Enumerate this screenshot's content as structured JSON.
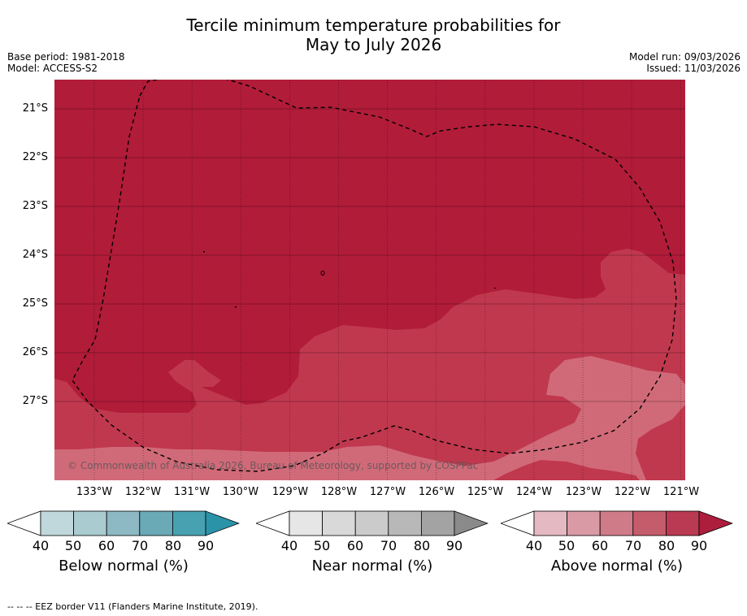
{
  "title": {
    "line1": "Tercile minimum temperature probabilities for",
    "line2": "May to July 2026"
  },
  "meta": {
    "base_period": "Base period: 1981-2018",
    "model": "Model: ACCESS-S2",
    "model_run": "Model run: 09/03/2026",
    "issued": "Issued: 11/03/2026"
  },
  "map": {
    "lat_labels": [
      "21°S",
      "22°S",
      "23°S",
      "24°S",
      "25°S",
      "26°S",
      "27°S"
    ],
    "lon_labels": [
      "133°W",
      "132°W",
      "131°W",
      "130°W",
      "129°W",
      "128°W",
      "127°W",
      "126°W",
      "125°W",
      "124°W",
      "123°W",
      "122°W",
      "121°W"
    ],
    "copyright": "© Commonwealth of Australia 2026, Bureau of Meteorology, supported by COSPPac",
    "colors": {
      "above_80_90": "#b11c39",
      "above_70_80": "#c0384e",
      "above_60_70": "#d06a79",
      "grid": "#000000"
    },
    "eez_border_style": "dashed"
  },
  "colorbars": [
    {
      "title": "Below normal (%)",
      "ticks": [
        "40",
        "50",
        "60",
        "70",
        "80",
        "90"
      ],
      "colors": [
        "#ffffff",
        "#c0d8dc",
        "#aacbd0",
        "#8cb9c3",
        "#6aa9b6",
        "#47a1b1",
        "#2a93a8"
      ]
    },
    {
      "title": "Near normal (%)",
      "ticks": [
        "40",
        "50",
        "60",
        "70",
        "80",
        "90"
      ],
      "colors": [
        "#ffffff",
        "#e6e6e6",
        "#d9d9d9",
        "#cbcbcb",
        "#b8b8b8",
        "#a3a3a3",
        "#8a8a8a"
      ]
    },
    {
      "title": "Above normal (%)",
      "ticks": [
        "40",
        "50",
        "60",
        "70",
        "80",
        "90"
      ],
      "colors": [
        "#ffffff",
        "#e4b9c1",
        "#d99aa5",
        "#cf7b88",
        "#c55c6c",
        "#b93a52",
        "#ad1e3c"
      ]
    }
  ],
  "footer": "--  --  -- EEZ border V11 (Flanders Marine Institute, 2019)."
}
